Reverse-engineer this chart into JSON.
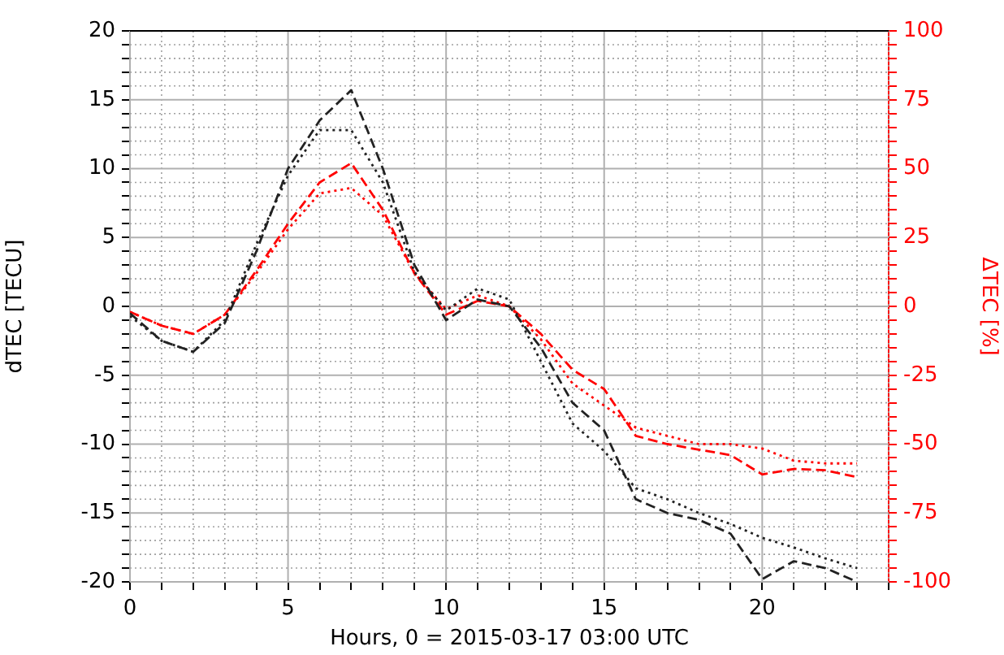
{
  "chart_data": {
    "type": "line",
    "xlabel": "Hours, 0 = 2015-03-17 03:00 UTC",
    "ylabel": "dTEC [TECU]",
    "y2label": "ΔTEC [%]",
    "x": [
      0,
      1,
      2,
      3,
      4,
      5,
      6,
      7,
      8,
      9,
      10,
      11,
      12,
      13,
      14,
      15,
      16,
      17,
      18,
      19,
      20,
      21,
      22,
      23
    ],
    "xlim": [
      0,
      24
    ],
    "xticks": [
      0,
      {
        "value": 1,
        "label": null
      },
      {
        "value": 2,
        "label": null
      },
      {
        "value": 3,
        "label": null
      },
      {
        "value": 4,
        "label": null
      },
      5,
      {
        "value": 6,
        "label": null
      },
      {
        "value": 7,
        "label": null
      },
      {
        "value": 8,
        "label": null
      },
      {
        "value": 9,
        "label": null
      },
      10,
      {
        "value": 11,
        "label": null
      },
      {
        "value": 12,
        "label": null
      },
      {
        "value": 13,
        "label": null
      },
      {
        "value": 14,
        "label": null
      },
      15,
      {
        "value": 16,
        "label": null
      },
      {
        "value": 17,
        "label": null
      },
      {
        "value": 18,
        "label": null
      },
      {
        "value": 19,
        "label": null
      },
      20,
      {
        "value": 21,
        "label": null
      },
      {
        "value": 22,
        "label": null
      },
      {
        "value": 23,
        "label": null
      },
      {
        "value": 24,
        "label": null
      }
    ],
    "ylim": [
      -20,
      20
    ],
    "yticks": [
      -20,
      {
        "value": -19,
        "label": null
      },
      {
        "value": -18,
        "label": null
      },
      {
        "value": -17,
        "label": null
      },
      {
        "value": -16,
        "label": null
      },
      -15,
      {
        "value": -14,
        "label": null
      },
      {
        "value": -13,
        "label": null
      },
      {
        "value": -12,
        "label": null
      },
      {
        "value": -11,
        "label": null
      },
      -10,
      {
        "value": -9,
        "label": null
      },
      {
        "value": -8,
        "label": null
      },
      {
        "value": -7,
        "label": null
      },
      {
        "value": -6,
        "label": null
      },
      -5,
      {
        "value": -4,
        "label": null
      },
      {
        "value": -3,
        "label": null
      },
      {
        "value": -2,
        "label": null
      },
      {
        "value": -1,
        "label": null
      },
      0,
      {
        "value": 1,
        "label": null
      },
      {
        "value": 2,
        "label": null
      },
      {
        "value": 3,
        "label": null
      },
      {
        "value": 4,
        "label": null
      },
      5,
      {
        "value": 6,
        "label": null
      },
      {
        "value": 7,
        "label": null
      },
      {
        "value": 8,
        "label": null
      },
      {
        "value": 9,
        "label": null
      },
      10,
      {
        "value": 11,
        "label": null
      },
      {
        "value": 12,
        "label": null
      },
      {
        "value": 13,
        "label": null
      },
      {
        "value": 14,
        "label": null
      },
      15,
      {
        "value": 16,
        "label": null
      },
      {
        "value": 17,
        "label": null
      },
      {
        "value": 18,
        "label": null
      },
      {
        "value": 19,
        "label": null
      },
      20
    ],
    "y2lim": [
      -100,
      100
    ],
    "y2ticks": [
      -100,
      {
        "value": -95,
        "label": null
      },
      {
        "value": -90,
        "label": null
      },
      {
        "value": -85,
        "label": null
      },
      {
        "value": -80,
        "label": null
      },
      -75,
      {
        "value": -70,
        "label": null
      },
      {
        "value": -65,
        "label": null
      },
      {
        "value": -60,
        "label": null
      },
      {
        "value": -55,
        "label": null
      },
      -50,
      {
        "value": -45,
        "label": null
      },
      {
        "value": -40,
        "label": null
      },
      {
        "value": -35,
        "label": null
      },
      {
        "value": -30,
        "label": null
      },
      -25,
      {
        "value": -20,
        "label": null
      },
      {
        "value": -15,
        "label": null
      },
      {
        "value": -10,
        "label": null
      },
      {
        "value": -5,
        "label": null
      },
      0,
      {
        "value": 5,
        "label": null
      },
      {
        "value": 10,
        "label": null
      },
      {
        "value": 15,
        "label": null
      },
      {
        "value": 20,
        "label": null
      },
      25,
      {
        "value": 30,
        "label": null
      },
      {
        "value": 35,
        "label": null
      },
      {
        "value": 40,
        "label": null
      },
      {
        "value": 45,
        "label": null
      },
      50,
      {
        "value": 55,
        "label": null
      },
      {
        "value": 60,
        "label": null
      },
      {
        "value": 65,
        "label": null
      },
      {
        "value": 70,
        "label": null
      },
      75,
      {
        "value": 80,
        "label": null
      },
      {
        "value": 85,
        "label": null
      },
      {
        "value": 90,
        "label": null
      },
      {
        "value": 95,
        "label": null
      },
      100
    ],
    "grid": true,
    "legend": false,
    "marker": "none",
    "series": [
      {
        "color": "#222222",
        "line_style": "dashed",
        "values": [
          -0.5,
          -2.5,
          -3.3,
          -1.2,
          4,
          10,
          13.5,
          15.7,
          10,
          3,
          -1,
          0.5,
          0,
          -3,
          -7,
          -9,
          -14,
          -15,
          -15.5,
          -16.5,
          -19.8,
          -18.5,
          -19,
          -20
        ]
      },
      {
        "color": "#222222",
        "line_style": "dotted",
        "values": [
          -0.7,
          -2.5,
          -3.3,
          -1,
          4.5,
          9.5,
          12.8,
          12.8,
          9,
          2.5,
          -0.3,
          1.3,
          0.5,
          -4,
          -8.5,
          -10.5,
          -13.2,
          -14,
          -15,
          -15.8,
          -16.8,
          -17.5,
          -18.3,
          -19
        ]
      },
      {
        "color": "#ff0000",
        "line_style": "dashed",
        "axis": "y2",
        "values": [
          -2,
          -7,
          -10,
          -3,
          13,
          30,
          45,
          52,
          35,
          12,
          -3,
          2,
          0,
          -10,
          -23,
          -30,
          -47,
          -50,
          -52,
          -54,
          -61,
          -59,
          -59.5,
          -62
        ]
      },
      {
        "color": "#ff0000",
        "line_style": "dotted",
        "axis": "y2",
        "values": [
          -2,
          -7,
          -10,
          -3,
          12,
          28,
          41,
          43,
          33,
          12,
          -1,
          4,
          0,
          -12,
          -28,
          -36,
          -44,
          -47,
          -50,
          -50,
          -51.6,
          -56,
          -57,
          -57
        ]
      }
    ]
  }
}
